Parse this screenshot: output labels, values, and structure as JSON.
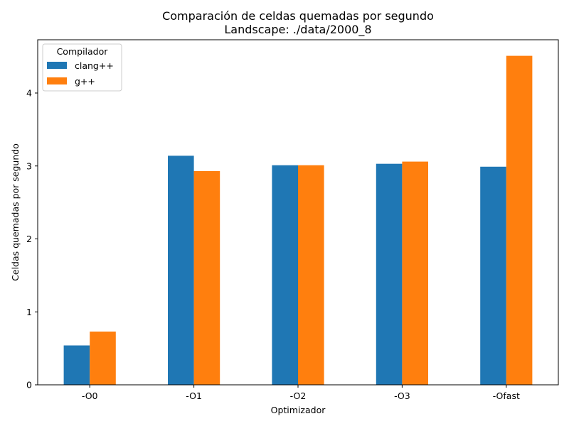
{
  "chart_data": {
    "type": "bar",
    "title": "Comparación de celdas quemadas por segundo",
    "subtitle": "Landscape: ./data/2000_8",
    "xlabel": "Optimizador",
    "ylabel": "Celdas quemadas por segundo",
    "categories": [
      "-O0",
      "-O1",
      "-O2",
      "-O3",
      "-Ofast"
    ],
    "series": [
      {
        "name": "clang++",
        "color": "#1f77b4",
        "values": [
          0.54,
          3.14,
          3.01,
          3.03,
          2.99
        ]
      },
      {
        "name": "g++",
        "color": "#ff7f0e",
        "values": [
          0.73,
          2.93,
          3.01,
          3.06,
          4.51
        ]
      }
    ],
    "ylim": [
      0,
      4.73
    ],
    "yticks": [
      0,
      1,
      2,
      3,
      4
    ],
    "grid": false,
    "legend": {
      "title": "Compilador",
      "placement": "top-left"
    }
  }
}
